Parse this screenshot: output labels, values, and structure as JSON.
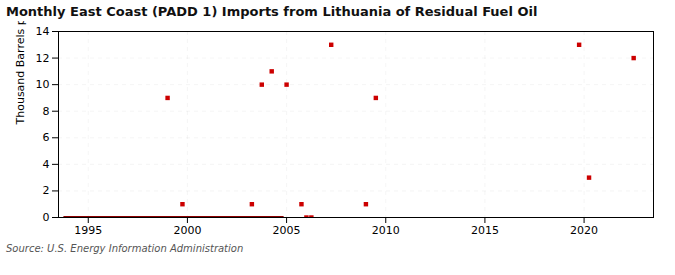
{
  "chart_data": {
    "type": "scatter",
    "title": "Monthly East Coast (PADD 1) Imports from Lithuania of Residual Fuel Oil",
    "ylabel": "Thousand Barrels per Day",
    "source": "Source: U.S. Energy Information Administration",
    "x": [
      1999.0,
      1999.75,
      2003.25,
      2003.75,
      2004.25,
      2005.0,
      2005.75,
      2006.0,
      2006.25,
      2007.25,
      2009.0,
      2009.5,
      2019.75,
      2020.25,
      2022.5
    ],
    "values": [
      9,
      1,
      1,
      10,
      11,
      10,
      1,
      0,
      0,
      13,
      1,
      9,
      13,
      3,
      12
    ],
    "color": "#cc0000",
    "marker": "square",
    "zero_line": {
      "x": [
        1993.8,
        2004.8
      ],
      "y": [
        0,
        0
      ],
      "color": "#8b0000"
    },
    "xlim": [
      1993.5,
      2023.5
    ],
    "ylim": [
      0,
      14
    ],
    "xticks": [
      1995,
      2000,
      2005,
      2010,
      2015,
      2020
    ],
    "yticks": [
      0,
      2,
      4,
      6,
      8,
      10,
      12,
      14
    ],
    "grid": true
  }
}
